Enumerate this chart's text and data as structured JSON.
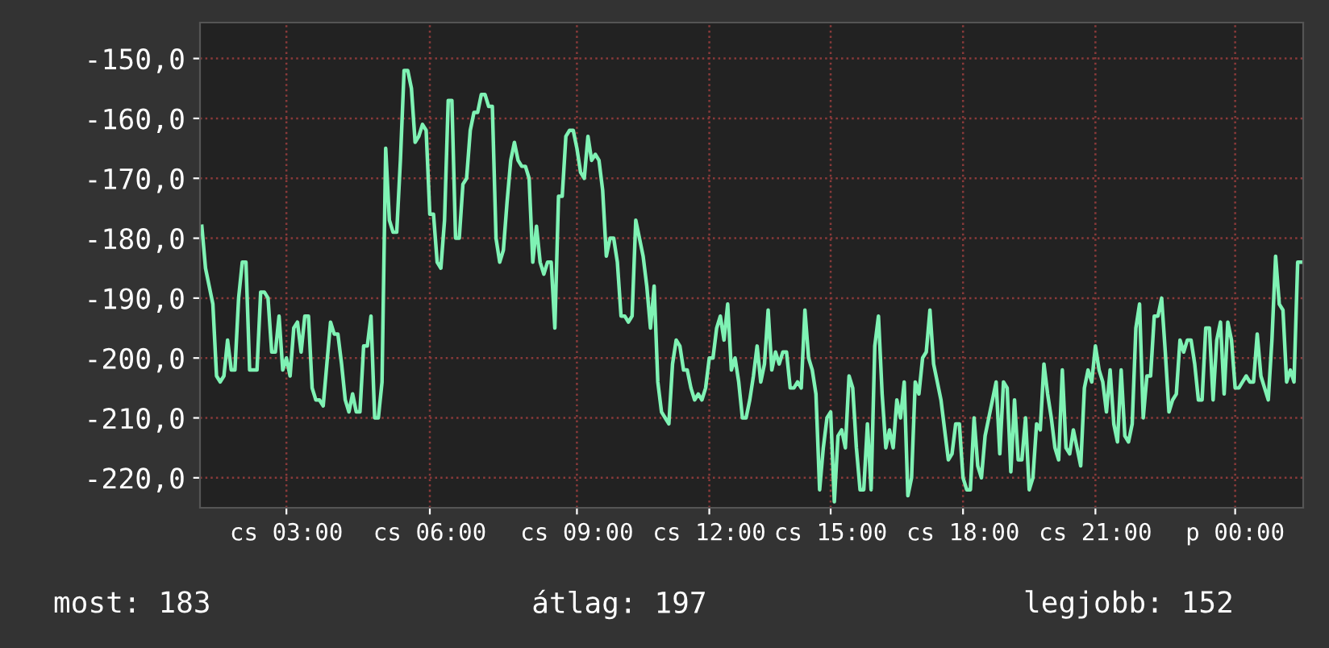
{
  "chart_data": {
    "type": "line",
    "annotations": [
      "most: 183",
      "átlag: 197",
      "legjobb: 152"
    ],
    "ylim": [
      -225,
      -144
    ],
    "yticks": [
      {
        "value": -150,
        "label": "-150,0"
      },
      {
        "value": -160,
        "label": "-160,0"
      },
      {
        "value": -170,
        "label": "-170,0"
      },
      {
        "value": -180,
        "label": "-180,0"
      },
      {
        "value": -190,
        "label": "-190,0"
      },
      {
        "value": -200,
        "label": "-200,0"
      },
      {
        "value": -210,
        "label": "-210,0"
      },
      {
        "value": -220,
        "label": "-220,0"
      }
    ],
    "grid": true,
    "categories": [
      null,
      null,
      null,
      null,
      null,
      null,
      null,
      null,
      null,
      null,
      null,
      null,
      null,
      null,
      null,
      null,
      null,
      null,
      null,
      null,
      null,
      null,
      null,
      "cs 03:00",
      null,
      null,
      null,
      null,
      null,
      null,
      null,
      null,
      null,
      null,
      null,
      null,
      null,
      null,
      null,
      null,
      null,
      null,
      null,
      null,
      null,
      null,
      null,
      null,
      null,
      null,
      null,
      null,
      null,
      null,
      null,
      null,
      null,
      null,
      null,
      null,
      null,
      null,
      "cs 06:00",
      null,
      null,
      null,
      null,
      null,
      null,
      null,
      null,
      null,
      null,
      null,
      null,
      null,
      null,
      null,
      null,
      null,
      null,
      null,
      null,
      null,
      null,
      null,
      null,
      null,
      null,
      null,
      null,
      null,
      null,
      null,
      null,
      null,
      null,
      null,
      null,
      null,
      null,
      null,
      "cs 09:00",
      null,
      null,
      null,
      null,
      null,
      null,
      null,
      null,
      null,
      null,
      null,
      null,
      null,
      null,
      null,
      null,
      null,
      null,
      null,
      null,
      null,
      null,
      null,
      null,
      null,
      null,
      null,
      null,
      null,
      null,
      null,
      null,
      null,
      null,
      null,
      "cs 12:00",
      null,
      null,
      null,
      null,
      null,
      null,
      null,
      null,
      null,
      null,
      null,
      null,
      null,
      null,
      null,
      null,
      null,
      null,
      null,
      null,
      null,
      null,
      null,
      null,
      null,
      null,
      null,
      null,
      null,
      null,
      null,
      null,
      "cs 15:00",
      null,
      null,
      null,
      null,
      null,
      null,
      null,
      null,
      null,
      null,
      null,
      null,
      null,
      null,
      null,
      null,
      null,
      null,
      null,
      null,
      null,
      null,
      null,
      null,
      null,
      null,
      null,
      null,
      null,
      null,
      null,
      null,
      null,
      null,
      null,
      "cs 18:00",
      null,
      null,
      null,
      null,
      null,
      null,
      null,
      null,
      null,
      null,
      null,
      null,
      null,
      null,
      null,
      null,
      null,
      null,
      null,
      null,
      null,
      null,
      null,
      null,
      null,
      null,
      null,
      null,
      null,
      null,
      null,
      null,
      null,
      null,
      null,
      "cs 21:00",
      null,
      null,
      null,
      null,
      null,
      null,
      null,
      null,
      null,
      null,
      null,
      null,
      null,
      null,
      null,
      null,
      null,
      null,
      null,
      null,
      null,
      null,
      null,
      null,
      null,
      null,
      null,
      null,
      null,
      null,
      null,
      null,
      null,
      null,
      null,
      null,
      null,
      "p 00:00",
      null,
      null,
      null,
      null,
      null,
      null,
      null,
      null,
      null,
      null,
      null,
      null,
      null,
      null,
      null,
      null,
      null,
      null
    ],
    "series": [
      {
        "color": "#7ff2b4",
        "values": [
          -178,
          -185,
          -188,
          -191,
          -203,
          -204,
          -203,
          -197,
          -202,
          -202,
          -190,
          -184,
          -184,
          -202,
          -202,
          -202,
          -189,
          -189,
          -190,
          -199,
          -199,
          -193,
          -202,
          -200,
          -203,
          -195,
          -194,
          -199,
          -193,
          -193,
          -205,
          -207,
          -207,
          -208,
          -201,
          -194,
          -196,
          -196,
          -201,
          -207,
          -209,
          -206,
          -209,
          -209,
          -198,
          -198,
          -193,
          -210,
          -210,
          -204,
          -165,
          -177,
          -179,
          -179,
          -167,
          -152,
          -152,
          -155,
          -164,
          -163,
          -161,
          -162,
          -176,
          -176,
          -184,
          -185,
          -177,
          -157,
          -157,
          -180,
          -180,
          -171,
          -170,
          -162,
          -159,
          -159,
          -156,
          -156,
          -158,
          -158,
          -180,
          -184,
          -182,
          -174,
          -167,
          -164,
          -167,
          -168,
          -168,
          -170,
          -184,
          -178,
          -184,
          -186,
          -184,
          -184,
          -195,
          -173,
          -173,
          -163,
          -162,
          -162,
          -165,
          -169,
          -170,
          -163,
          -167,
          -166,
          -167,
          -172,
          -183,
          -180,
          -180,
          -184,
          -193,
          -193,
          -194,
          -193,
          -177,
          -180,
          -183,
          -188,
          -195,
          -188,
          -204,
          -209,
          -210,
          -211,
          -201,
          -197,
          -198,
          -202,
          -202,
          -205,
          -207,
          -206,
          -207,
          -205,
          -200,
          -200,
          -195,
          -193,
          -197,
          -191,
          -202,
          -200,
          -204,
          -210,
          -210,
          -207,
          -203,
          -198,
          -204,
          -201,
          -192,
          -202,
          -199,
          -201,
          -199,
          -199,
          -205,
          -205,
          -204,
          -205,
          -192,
          -200,
          -202,
          -206,
          -222,
          -215,
          -210,
          -209,
          -224,
          -213,
          -212,
          -215,
          -203,
          -205,
          -215,
          -222,
          -222,
          -211,
          -222,
          -198,
          -193,
          -206,
          -215,
          -212,
          -215,
          -207,
          -210,
          -204,
          -223,
          -220,
          -204,
          -206,
          -200,
          -199,
          -192,
          -201,
          -204,
          -207,
          -212,
          -217,
          -216,
          -211,
          -211,
          -220,
          -222,
          -222,
          -210,
          -218,
          -220,
          -213,
          -210,
          -207,
          -204,
          -216,
          -204,
          -205,
          -219,
          -207,
          -217,
          -217,
          -210,
          -222,
          -220,
          -211,
          -212,
          -201,
          -206,
          -210,
          -215,
          -217,
          -202,
          -215,
          -216,
          -212,
          -215,
          -218,
          -205,
          -202,
          -204,
          -198,
          -202,
          -204,
          -209,
          -202,
          -211,
          -214,
          -202,
          -213,
          -214,
          -211,
          -195,
          -191,
          -210,
          -203,
          -203,
          -193,
          -193,
          -190,
          -199,
          -209,
          -207,
          -206,
          -197,
          -199,
          -197,
          -197,
          -201,
          -207,
          -207,
          -195,
          -195,
          -207,
          -197,
          -194,
          -206,
          -194,
          -197,
          -205,
          -205,
          -204,
          -203,
          -204,
          -204,
          -196,
          -203,
          -205,
          -207,
          -197,
          -183,
          -191,
          -192,
          -204,
          -202,
          -204,
          -184,
          -184
        ]
      }
    ]
  }
}
